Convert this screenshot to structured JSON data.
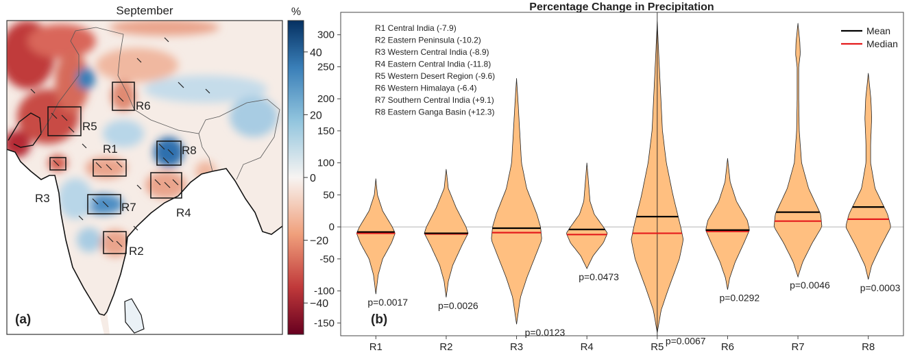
{
  "map_panel": {
    "title": "September",
    "panel_label": "(a)",
    "colorbar": {
      "unit": "%",
      "range": [
        -50,
        50
      ],
      "ticks": [
        "40",
        "20",
        "0",
        "−20",
        "−40"
      ],
      "tick_values": [
        40,
        20,
        0,
        -20,
        -40
      ],
      "colormap": "RdBu",
      "low_color": "#67001f",
      "mid_color": "#f7f7f7",
      "high_color": "#053061"
    },
    "region_labels": [
      "R1",
      "R2",
      "R3",
      "R4",
      "R5",
      "R6",
      "R7",
      "R8"
    ]
  },
  "chart_data": {
    "type": "violin",
    "title": "Percentage Change in Precipitation",
    "panel_label": "(b)",
    "categories": [
      "R1",
      "R2",
      "R3",
      "R4",
      "R5",
      "R6",
      "R7",
      "R8"
    ],
    "ylim": [
      -170,
      335
    ],
    "yticks": [
      -150,
      -100,
      -50,
      0,
      50,
      100,
      150,
      200,
      250,
      300
    ],
    "xlabel": "",
    "ylabel": "",
    "fill_color": "#ffbf80",
    "mean_color": "#000000",
    "median_color": "#e41a1c",
    "legend": {
      "placement": "top-right",
      "entries": [
        "Mean",
        "Median"
      ]
    },
    "region_notes": [
      "R1 Central India  (-7.9)",
      "R2 Eastern Peninsula  (-10.2)",
      "R3 Western Central India  (-8.9)",
      "R4 Eastern Central India  (-11.8)",
      "R5 Western Desert Region  (-9.6)",
      "R6 Western Himalaya  (-6.4)",
      "R7 Southern Central India  (+9.1)",
      "R8 Eastern Ganga Basin  (+12.3)"
    ],
    "series": [
      {
        "category": "R1",
        "min": -105,
        "max": 75,
        "mean": -8,
        "median": -10,
        "p_value": "p=0.0017",
        "density": [
          [
            75,
            0
          ],
          [
            50,
            0.06
          ],
          [
            25,
            0.26
          ],
          [
            0,
            0.63
          ],
          [
            -10,
            0.74
          ],
          [
            -25,
            0.6
          ],
          [
            -50,
            0.26
          ],
          [
            -75,
            0.09
          ],
          [
            -105,
            0
          ]
        ]
      },
      {
        "category": "R2",
        "min": -110,
        "max": 90,
        "mean": -10,
        "median": -11,
        "p_value": "p=0.0026",
        "density": [
          [
            90,
            0
          ],
          [
            60,
            0.08
          ],
          [
            30,
            0.38
          ],
          [
            0,
            0.76
          ],
          [
            -10,
            0.84
          ],
          [
            -30,
            0.59
          ],
          [
            -60,
            0.25
          ],
          [
            -85,
            0.08
          ],
          [
            -110,
            0
          ]
        ]
      },
      {
        "category": "R3",
        "min": -152,
        "max": 232,
        "mean": -2,
        "median": -9,
        "p_value": "p=0.0123",
        "density": [
          [
            232,
            0
          ],
          [
            200,
            0.05
          ],
          [
            150,
            0.12
          ],
          [
            100,
            0.19
          ],
          [
            60,
            0.39
          ],
          [
            20,
            0.78
          ],
          [
            0,
            0.92
          ],
          [
            -20,
            0.97
          ],
          [
            -50,
            0.68
          ],
          [
            -80,
            0.39
          ],
          [
            -110,
            0.15
          ],
          [
            -152,
            0
          ]
        ]
      },
      {
        "category": "R4",
        "min": -65,
        "max": 100,
        "mean": -4,
        "median": -12,
        "p_value": "p=0.0473",
        "density": [
          [
            100,
            0
          ],
          [
            70,
            0.06
          ],
          [
            40,
            0.12
          ],
          [
            20,
            0.28
          ],
          [
            0,
            0.63
          ],
          [
            -10,
            0.79
          ],
          [
            -25,
            0.63
          ],
          [
            -45,
            0.24
          ],
          [
            -65,
            0
          ]
        ]
      },
      {
        "category": "R5",
        "min": -165,
        "max": 320,
        "mean": 16,
        "median": -10,
        "p_value": "p=0.0067",
        "density": [
          [
            320,
            0
          ],
          [
            250,
            0.08
          ],
          [
            150,
            0.2
          ],
          [
            100,
            0.35
          ],
          [
            50,
            0.6
          ],
          [
            0,
            0.9
          ],
          [
            -20,
            1
          ],
          [
            -50,
            0.85
          ],
          [
            -100,
            0.4
          ],
          [
            -130,
            0.15
          ],
          [
            -165,
            0
          ]
        ]
      },
      {
        "category": "R6",
        "min": -98,
        "max": 107,
        "mean": -5,
        "median": -7,
        "p_value": "p=0.0292",
        "density": [
          [
            107,
            0
          ],
          [
            70,
            0.1
          ],
          [
            40,
            0.34
          ],
          [
            10,
            0.76
          ],
          [
            -5,
            0.84
          ],
          [
            -25,
            0.63
          ],
          [
            -55,
            0.29
          ],
          [
            -80,
            0.08
          ],
          [
            -98,
            0
          ]
        ]
      },
      {
        "category": "R7",
        "min": -78,
        "max": 318,
        "mean": 23,
        "median": 9,
        "p_value": "p=0.0046",
        "density": [
          [
            318,
            0
          ],
          [
            290,
            0.07
          ],
          [
            270,
            0.09
          ],
          [
            250,
            0.03
          ],
          [
            200,
            0.03
          ],
          [
            150,
            0.05
          ],
          [
            100,
            0.14
          ],
          [
            60,
            0.41
          ],
          [
            20,
            0.87
          ],
          [
            0,
            0.92
          ],
          [
            -25,
            0.55
          ],
          [
            -55,
            0.18
          ],
          [
            -78,
            0
          ]
        ]
      },
      {
        "category": "R8",
        "min": -82,
        "max": 240,
        "mean": 31,
        "median": 12,
        "p_value": "p=0.0003",
        "density": [
          [
            240,
            0
          ],
          [
            200,
            0.1
          ],
          [
            170,
            0.13
          ],
          [
            130,
            0.09
          ],
          [
            100,
            0.09
          ],
          [
            60,
            0.26
          ],
          [
            20,
            0.74
          ],
          [
            0,
            0.87
          ],
          [
            -30,
            0.48
          ],
          [
            -60,
            0.13
          ],
          [
            -82,
            0
          ]
        ]
      }
    ]
  }
}
